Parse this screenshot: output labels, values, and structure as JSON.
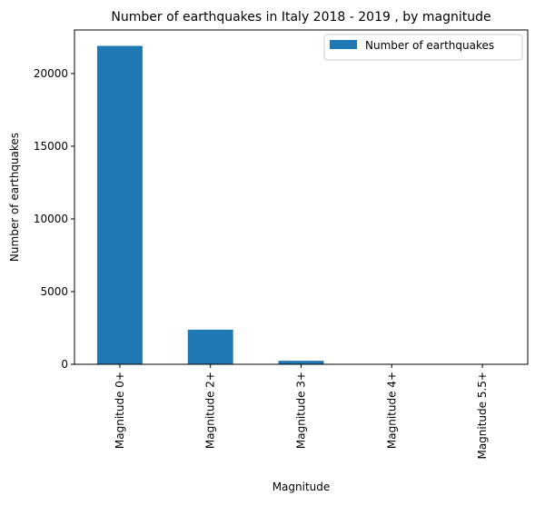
{
  "chart_data": {
    "type": "bar",
    "title": "Number of earthquakes in Italy 2018 - 2019 , by magnitude",
    "xlabel": "Magnitude",
    "ylabel": "Number of earthquakes",
    "categories": [
      "Magnitude 0+",
      "Magnitude 2+",
      "Magnitude 3+",
      "Magnitude 4+",
      "Magnitude 5.5+"
    ],
    "series": [
      {
        "name": "Number of earthquakes",
        "values": [
          21900,
          2380,
          240,
          20,
          1
        ]
      }
    ],
    "ylim": [
      0,
      22995
    ],
    "yticks": [
      0,
      5000,
      10000,
      15000,
      20000
    ],
    "legend_position": "top-right",
    "grid": false,
    "colors": {
      "bar": "#1f77b4",
      "axis": "#000000",
      "background": "#ffffff"
    }
  }
}
